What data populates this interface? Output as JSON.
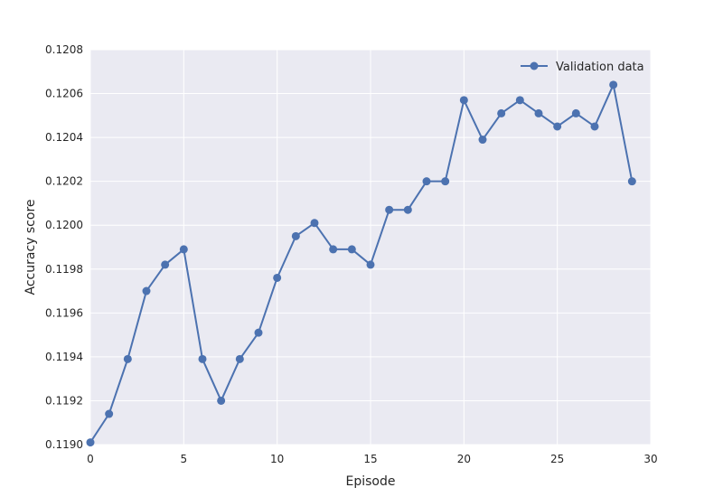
{
  "chart_data": {
    "type": "line",
    "title": "",
    "xlabel": "Episode",
    "ylabel": "Accuracy score",
    "xlim": [
      0,
      30
    ],
    "ylim": [
      0.119,
      0.1208
    ],
    "xticks": [
      0,
      5,
      10,
      15,
      20,
      25,
      30
    ],
    "yticks": [
      0.119,
      0.1192,
      0.1194,
      0.1196,
      0.1198,
      0.12,
      0.1202,
      0.1204,
      0.1206,
      0.1208
    ],
    "xtick_labels": [
      "0",
      "5",
      "10",
      "15",
      "20",
      "25",
      "30"
    ],
    "ytick_labels": [
      "0.1190",
      "0.1192",
      "0.1194",
      "0.1196",
      "0.1198",
      "0.1200",
      "0.1202",
      "0.1204",
      "0.1206",
      "0.1208"
    ],
    "grid": true,
    "legend_position": "top-right",
    "series": [
      {
        "name": "Validation data",
        "color": "#4c72b0",
        "marker": "circle",
        "x": [
          0,
          1,
          2,
          3,
          4,
          5,
          6,
          7,
          8,
          9,
          10,
          11,
          12,
          13,
          14,
          15,
          16,
          17,
          18,
          19,
          20,
          21,
          22,
          23,
          24,
          25,
          26,
          27,
          28,
          29
        ],
        "y": [
          0.11901,
          0.11914,
          0.11939,
          0.1197,
          0.11982,
          0.11989,
          0.11939,
          0.1192,
          0.11939,
          0.11951,
          0.11976,
          0.11995,
          0.12001,
          0.11989,
          0.11989,
          0.11982,
          0.12007,
          0.12007,
          0.1202,
          0.1202,
          0.12057,
          0.12039,
          0.12051,
          0.12057,
          0.12051,
          0.12045,
          0.12051,
          0.12045,
          0.12064,
          0.1202
        ]
      }
    ]
  },
  "colors": {
    "plot_background": "#eaeaf2",
    "grid": "#ffffff",
    "line": "#4c72b0"
  }
}
